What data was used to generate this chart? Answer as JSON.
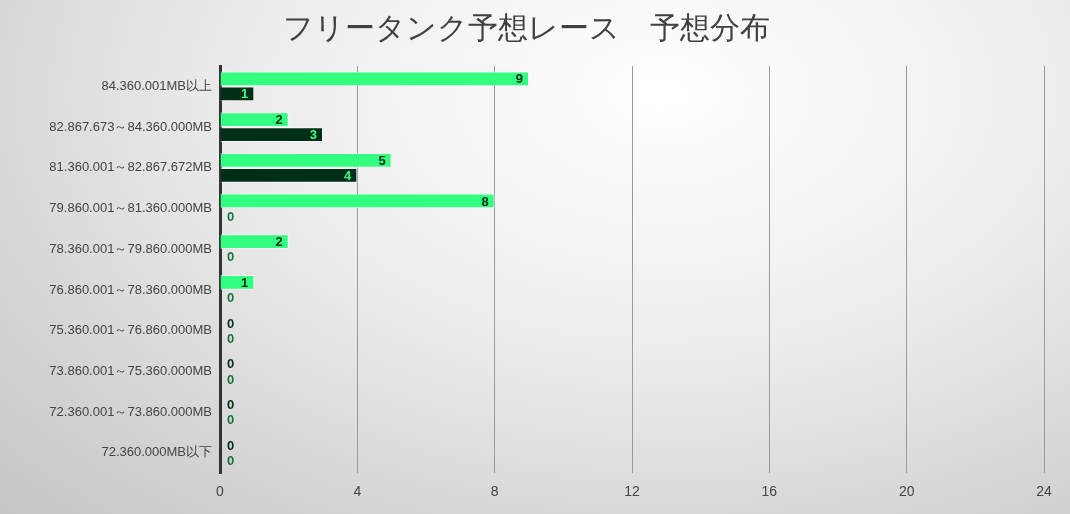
{
  "chart_data": {
    "type": "bar",
    "title": "フリータンク予想レース　予想分布",
    "orientation": "horizontal",
    "categories": [
      "84.360.001MB以上",
      "82.867.673～84.360.000MB",
      "81.360.001～82.867.672MB",
      "79.860.001～81.360.000MB",
      "78.360.001～79.860.000MB",
      "76.860.001～78.360.000MB",
      "75.360.001～76.860.000MB",
      "73.860.001～75.360.000MB",
      "72.360.001～73.860.000MB",
      "72.360.000MB以下"
    ],
    "series": [
      {
        "color": "#33ff80",
        "values": [
          9,
          2,
          5,
          8,
          2,
          1,
          0,
          0,
          0,
          0
        ]
      },
      {
        "color": "#002e16",
        "values": [
          1,
          3,
          4,
          0,
          0,
          0,
          0,
          0,
          0,
          0
        ]
      }
    ],
    "xlim": [
      0,
      24
    ],
    "xticks": [
      0,
      4,
      8,
      12,
      16,
      20,
      24
    ],
    "grid": "x",
    "data_labels": true
  }
}
